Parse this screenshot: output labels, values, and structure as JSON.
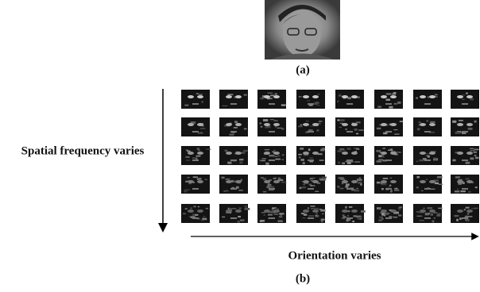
{
  "figure": {
    "label_a": "(a)",
    "y_axis_label": "Spatial frequency varies",
    "x_axis_label": "Orientation varies",
    "label_b": "(b)"
  }
}
